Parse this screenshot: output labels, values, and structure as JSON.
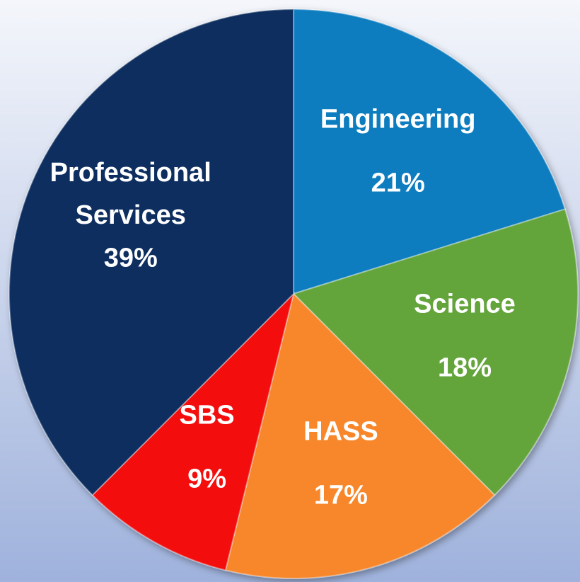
{
  "chart_data": {
    "type": "pie",
    "categories": [
      "Engineering",
      "Science",
      "HASS",
      "SBS",
      "Professional Services"
    ],
    "values": [
      21,
      18,
      17,
      9,
      39
    ],
    "value_labels": [
      "21%",
      "18%",
      "17%",
      "9%",
      "39%"
    ],
    "colors": [
      "#0b7dbf",
      "#63a43b",
      "#f7872b",
      "#f40f0f",
      "#0a2d5e"
    ]
  }
}
